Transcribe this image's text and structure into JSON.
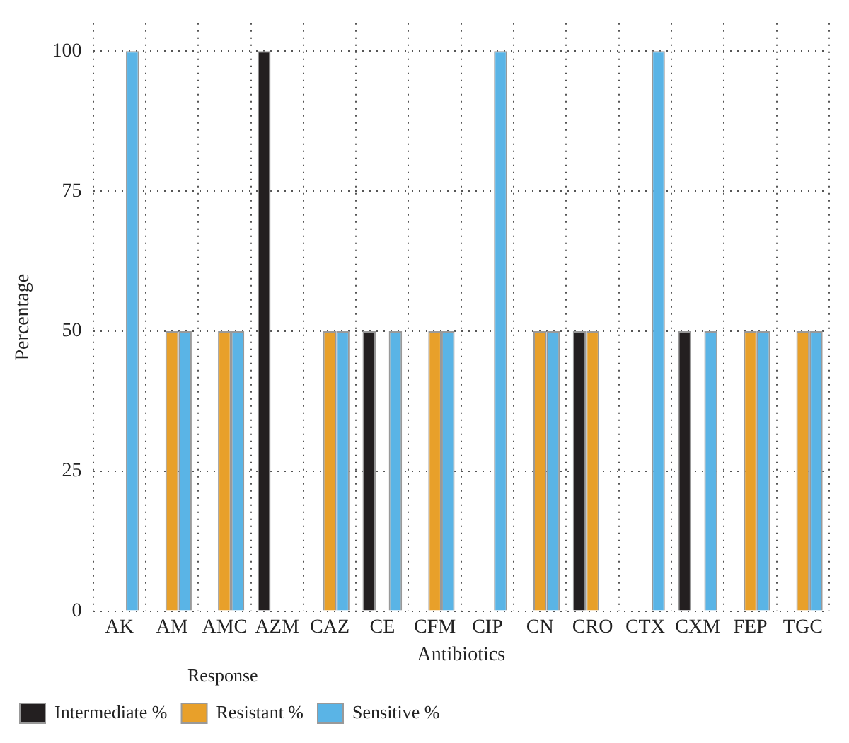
{
  "chart_data": {
    "type": "bar",
    "xlabel": "Antibiotics",
    "ylabel": "Percentage",
    "legend_title": "Response",
    "legend": "bottom left",
    "grid": true,
    "line_style": "dotted",
    "categories": [
      "AK",
      "AM",
      "AMC",
      "AZM",
      "CAZ",
      "CE",
      "CFM",
      "CIP",
      "CN",
      "CRO",
      "CTX",
      "CXM",
      "FEP",
      "TGC"
    ],
    "ylim": [
      0,
      105
    ],
    "yticks": [
      0,
      25,
      50,
      75,
      100
    ],
    "series": [
      {
        "name": "Intermediate %",
        "color": "#231f20",
        "values": [
          0,
          0,
          0,
          100,
          0,
          50,
          0,
          0,
          0,
          50,
          0,
          50,
          0,
          0
        ]
      },
      {
        "name": "Resistant %",
        "color": "#e8a02a",
        "values": [
          0,
          50,
          50,
          0,
          50,
          0,
          50,
          0,
          50,
          50,
          0,
          0,
          50,
          50
        ]
      },
      {
        "name": "Sensitive %",
        "color": "#5ab4e6",
        "values": [
          100,
          50,
          50,
          0,
          50,
          50,
          50,
          100,
          50,
          0,
          100,
          50,
          50,
          50
        ]
      }
    ]
  }
}
